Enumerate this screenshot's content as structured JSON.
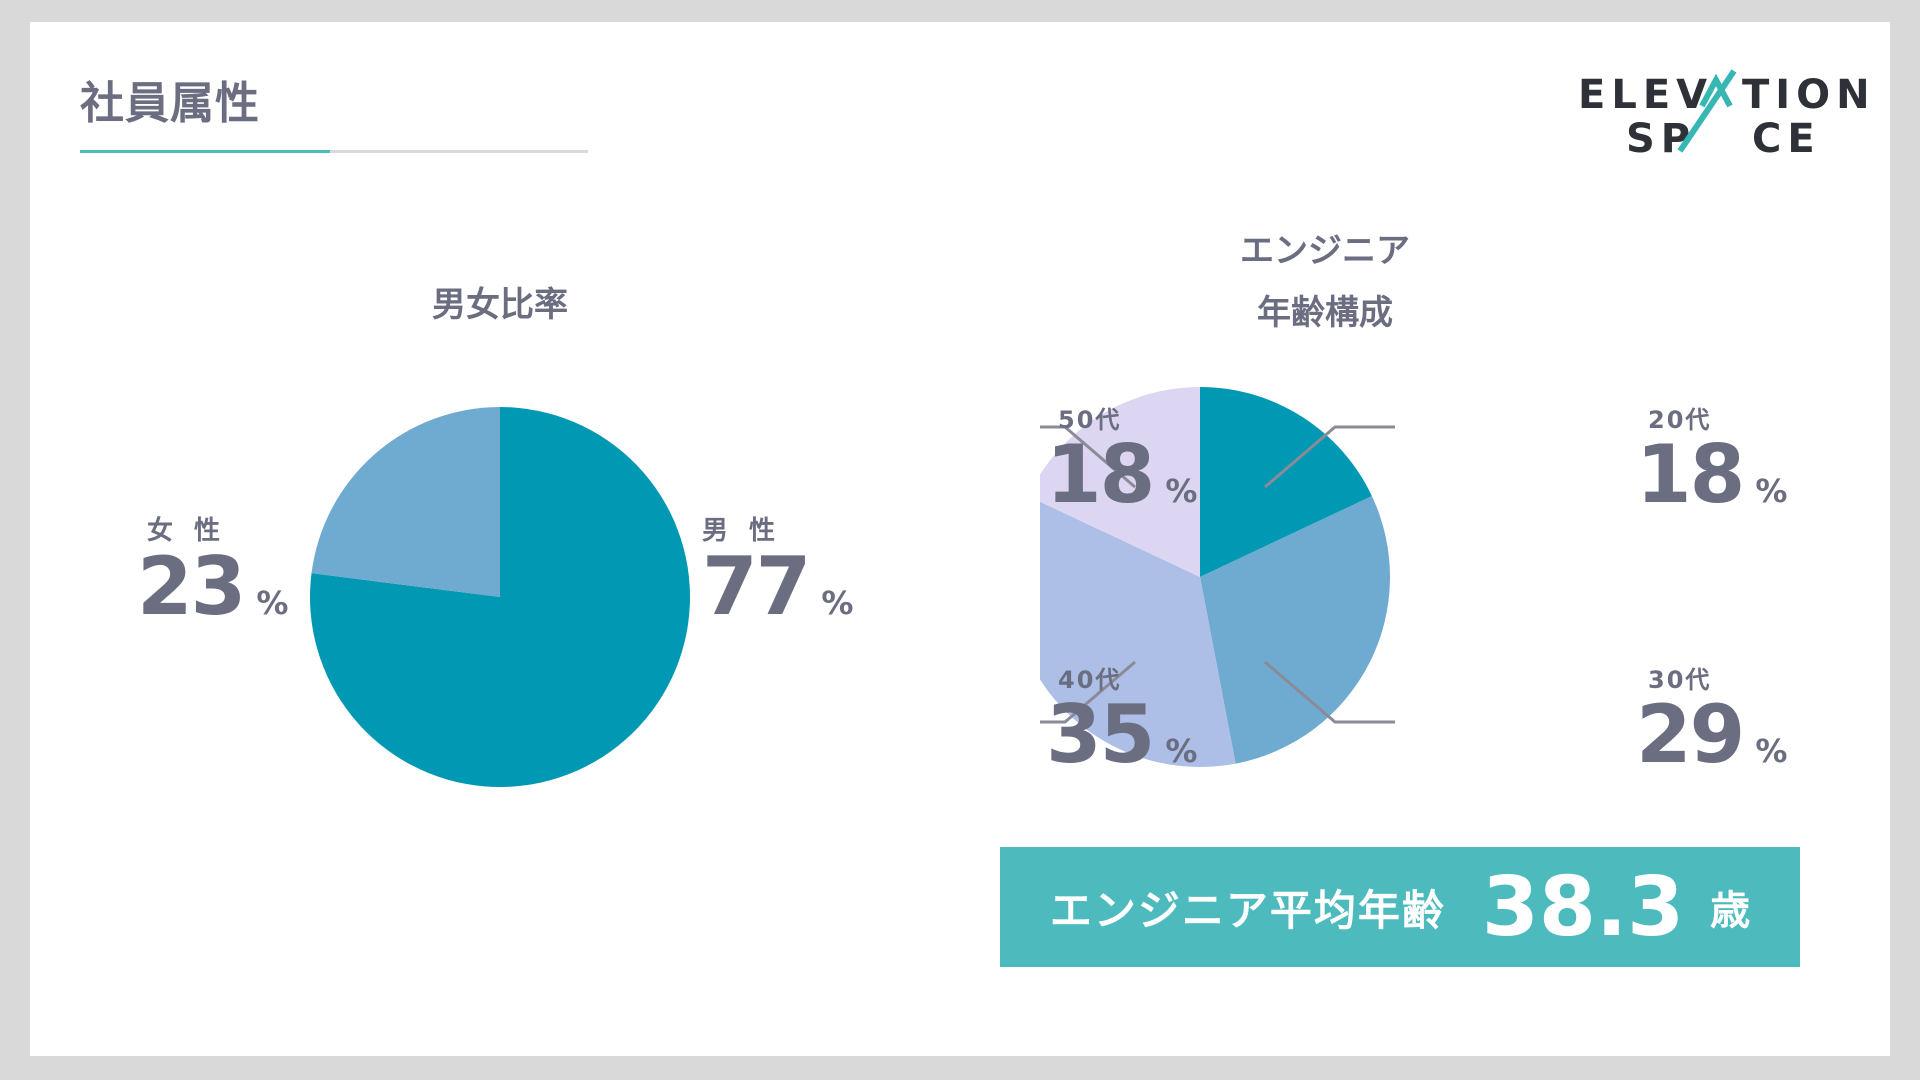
{
  "header": {
    "title": "社員属性"
  },
  "logo": {
    "line1_left": "ELEV",
    "line1_right": "TION",
    "line2_left": "SP",
    "line2_right": "CE"
  },
  "colors": {
    "teal_dark": "#0098b2",
    "blue_mid": "#6faad1",
    "blue_light": "#adbfe6",
    "lavender": "#ddd6f2",
    "accent": "#4dbbbd",
    "text": "#6b6d80",
    "leader": "#8a8b96"
  },
  "chart_data": [
    {
      "type": "pie",
      "title": "男女比率",
      "categories": [
        "男性",
        "女性"
      ],
      "values": [
        77,
        23
      ],
      "unit": "%",
      "colors": [
        "#0098b2",
        "#6faad1"
      ]
    },
    {
      "type": "pie",
      "title_lines": [
        "エンジニア",
        "年齢構成"
      ],
      "categories": [
        "20代",
        "30代",
        "40代",
        "50代"
      ],
      "values": [
        18,
        29,
        35,
        18
      ],
      "unit": "%",
      "colors": [
        "#0098b2",
        "#6faad1",
        "#adbfe6",
        "#ddd6f2"
      ]
    }
  ],
  "gender_labels": {
    "male": {
      "label": "男 性",
      "value": "77",
      "unit": "%"
    },
    "female": {
      "label": "女 性",
      "value": "23",
      "unit": "%"
    }
  },
  "age_labels": {
    "a20": {
      "label": "20代",
      "value": "18",
      "unit": "%"
    },
    "a30": {
      "label": "30代",
      "value": "29",
      "unit": "%"
    },
    "a40": {
      "label": "40代",
      "value": "35",
      "unit": "%"
    },
    "a50": {
      "label": "50代",
      "value": "18",
      "unit": "%"
    }
  },
  "banner": {
    "label": "エンジニア平均年齢",
    "value": "38.3",
    "unit": "歳"
  }
}
